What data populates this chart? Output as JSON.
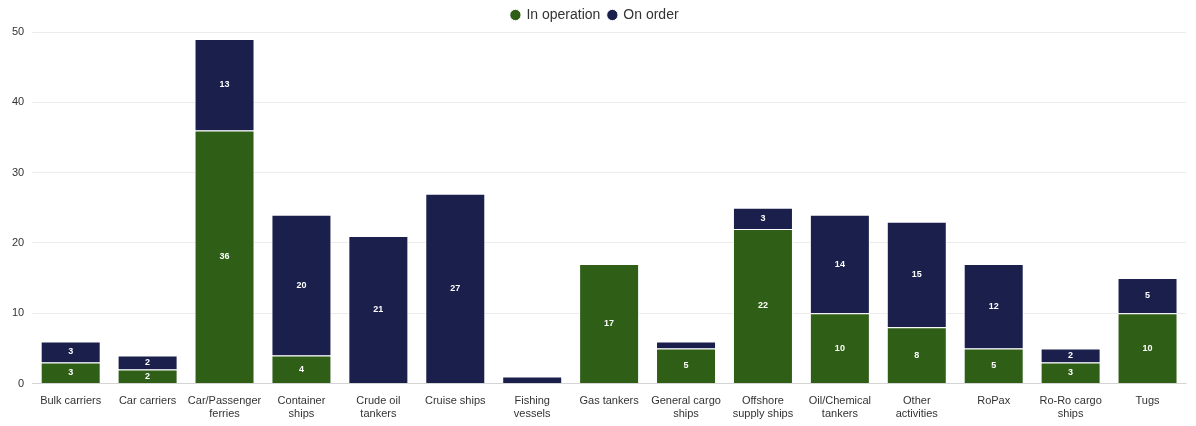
{
  "chart_data": {
    "type": "bar",
    "stacked": true,
    "legend": "top",
    "grid": "y",
    "categories": [
      "Bulk carriers",
      "Car carriers",
      "Car/Passenger ferries",
      "Container ships",
      "Crude oil tankers",
      "Cruise ships",
      "Fishing vessels",
      "Gas tankers",
      "General cargo ships",
      "Offshore supply ships",
      "Oil/Chemical tankers",
      "Other activities",
      "RoPax",
      "Ro-Ro cargo ships",
      "Tugs"
    ],
    "ylim": [
      0,
      50
    ],
    "yticks": [
      0,
      10,
      20,
      30,
      40,
      50
    ],
    "series": [
      {
        "name": "In operation",
        "color": "#2f5e17",
        "values": [
          3,
          2,
          36,
          4,
          0,
          0,
          0,
          17,
          5,
          22,
          10,
          8,
          5,
          3,
          10
        ],
        "value_labels": [
          "3",
          "2",
          "36",
          "4",
          null,
          null,
          null,
          "17",
          "5",
          "22",
          "10",
          "8",
          "5",
          "3",
          "10"
        ]
      },
      {
        "name": "On order",
        "color": "#1a1f4b",
        "values": [
          3,
          2,
          13,
          20,
          21,
          27,
          1,
          0,
          1,
          3,
          14,
          15,
          12,
          2,
          5
        ],
        "value_labels": [
          "3",
          "2",
          "13",
          "20",
          "21",
          "27",
          null,
          null,
          null,
          "3",
          "14",
          "15",
          "12",
          "2",
          "5"
        ]
      }
    ]
  }
}
